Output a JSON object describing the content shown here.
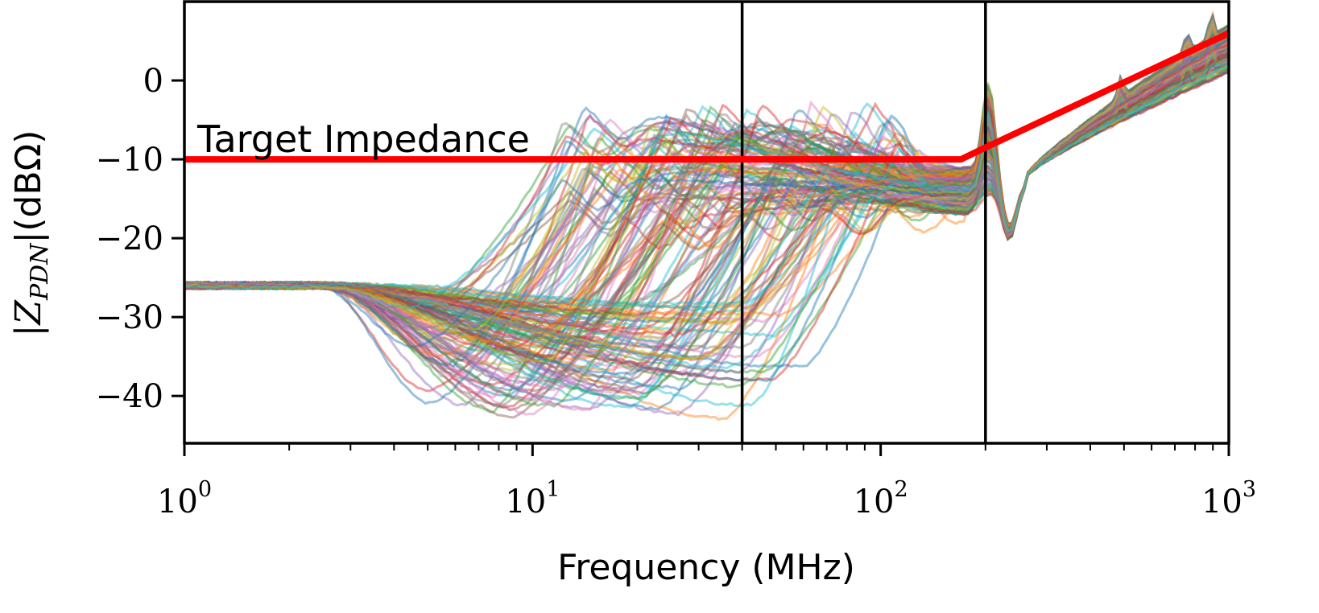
{
  "chart_data": {
    "type": "line",
    "xlabel": "Frequency (MHz)",
    "ylabel": "|Z_PDN|(dBΩ)",
    "ylabel_parts": {
      "z": "|Z",
      "sub": "PDN",
      "unit": "|(dBΩ)"
    },
    "xscale": "log",
    "xlim": [
      1,
      1000
    ],
    "ylim": [
      -46,
      10
    ],
    "x_ticks": [
      {
        "value": 1,
        "base": "10",
        "exp": "0"
      },
      {
        "value": 10,
        "base": "10",
        "exp": "1"
      },
      {
        "value": 100,
        "base": "10",
        "exp": "2"
      },
      {
        "value": 1000,
        "base": "10",
        "exp": "3"
      }
    ],
    "y_ticks": [
      {
        "value": 0,
        "label": "0"
      },
      {
        "value": -10,
        "label": "−10"
      },
      {
        "value": -20,
        "label": "−20"
      },
      {
        "value": -30,
        "label": "−30"
      },
      {
        "value": -40,
        "label": "−40"
      }
    ],
    "grid": false,
    "legend": "none",
    "vertical_lines": [
      40,
      200
    ],
    "target_impedance": {
      "label": "Target Impedance",
      "color": "#ff0000",
      "points": [
        [
          1,
          -10
        ],
        [
          170,
          -10
        ],
        [
          200,
          -8.5
        ],
        [
          1000,
          6
        ]
      ]
    },
    "ensemble": {
      "count": 140,
      "low_freq_level": -26,
      "min_range": [
        -43,
        -28
      ],
      "resonance_freq_range": [
        12,
        120
      ],
      "peak_range": [
        -18,
        -2.5
      ],
      "resonance_near_200": [
        -12,
        0
      ],
      "high_freq_end_range": [
        1,
        7
      ]
    },
    "colors": [
      "#1f77b4",
      "#ff7f0e",
      "#2ca02c",
      "#d62728",
      "#9467bd",
      "#8c564b",
      "#e377c2",
      "#7f7f7f",
      "#bcbd22",
      "#17becf"
    ]
  }
}
